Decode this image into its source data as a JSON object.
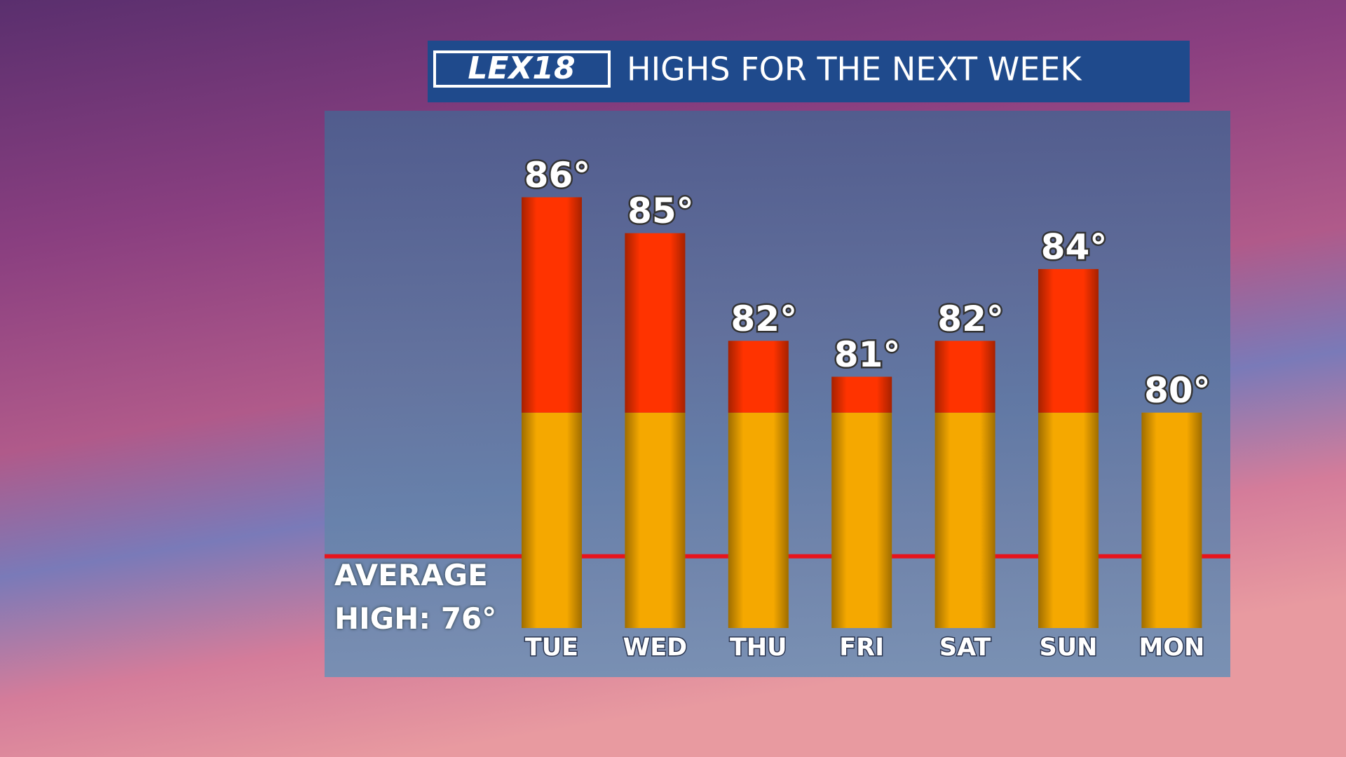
{
  "chart_data": {
    "type": "bar",
    "logo": "LEX18",
    "title": "HIGHS FOR THE NEXT WEEK",
    "categories": [
      "TUE",
      "WED",
      "THU",
      "FRI",
      "SAT",
      "SUN",
      "MON"
    ],
    "values": [
      86,
      85,
      82,
      81,
      82,
      84,
      80
    ],
    "value_labels": [
      "86°",
      "85°",
      "82°",
      "81°",
      "82°",
      "84°",
      "80°"
    ],
    "color_below": "#f5a800",
    "color_above": "#ff3300",
    "color_split": 80,
    "ylim": [
      74,
      88
    ],
    "average": {
      "value": 76,
      "label": "AVERAGE HIGH: 76°",
      "color": "#e8141c"
    }
  }
}
